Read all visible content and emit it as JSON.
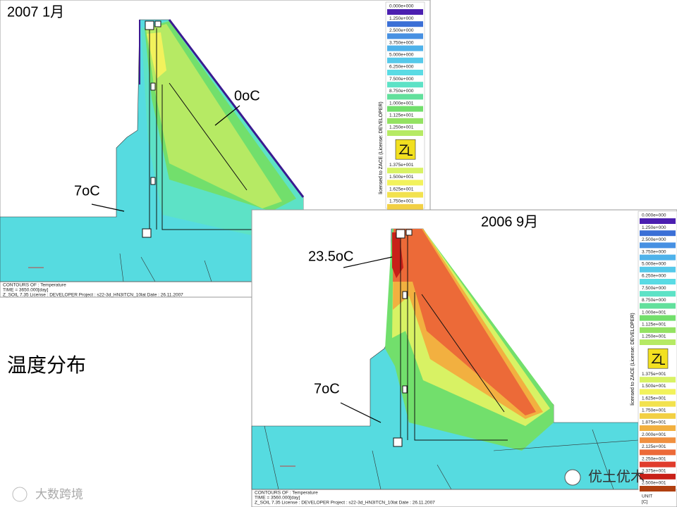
{
  "slide": {
    "label": "温度分布"
  },
  "panels": [
    {
      "title": "2007 1月",
      "annotations": [
        "0oC",
        "7oC"
      ],
      "legend": [
        {
          "label": "0.000e+000",
          "color": "#4b1fb0"
        },
        {
          "label": "1.250e+000",
          "color": "#3b6fd6"
        },
        {
          "label": "2.500e+000",
          "color": "#4790e2"
        },
        {
          "label": "3.750e+000",
          "color": "#4fb2ea"
        },
        {
          "label": "5.000e+000",
          "color": "#55c9ea"
        },
        {
          "label": "6.250e+000",
          "color": "#5adbe4"
        },
        {
          "label": "7.500e+000",
          "color": "#5de2c6"
        },
        {
          "label": "8.750e+000",
          "color": "#62e09c"
        },
        {
          "label": "1.000e+001",
          "color": "#72df6c"
        },
        {
          "label": "1.125e+001",
          "color": "#93e262"
        },
        {
          "label": "1.250e+001",
          "color": "#b6ea64"
        },
        {
          "label": "1.375e+001",
          "color": "#d8f264"
        },
        {
          "label": "1.500e+001",
          "color": "#f2f25c"
        },
        {
          "label": "1.625e+001",
          "color": "#f2e24e"
        },
        {
          "label": "1.750e+001",
          "color": "#f2d044"
        }
      ],
      "footer": [
        "CONTOURS OF : Temperature",
        "TIME = 3650.000[day]",
        "Z_SOIL 7.35   License : DEVELOPER   Project : s22-3d_HN3ITCN_10lat   Date : 26.11.2007"
      ],
      "license": "licensed to ZACE (License: DEVELOPER)"
    },
    {
      "title": "2006 9月",
      "annotations": [
        "23.5oC",
        "7oC"
      ],
      "legend": [
        {
          "label": "0.000e+000",
          "color": "#4b1fb0"
        },
        {
          "label": "1.250e+000",
          "color": "#3b6fd6"
        },
        {
          "label": "2.500e+000",
          "color": "#4790e2"
        },
        {
          "label": "3.750e+000",
          "color": "#4fb2ea"
        },
        {
          "label": "5.000e+000",
          "color": "#55c9ea"
        },
        {
          "label": "6.250e+000",
          "color": "#5adbe4"
        },
        {
          "label": "7.500e+000",
          "color": "#5de2c6"
        },
        {
          "label": "8.750e+000",
          "color": "#62e09c"
        },
        {
          "label": "1.000e+001",
          "color": "#72df6c"
        },
        {
          "label": "1.125e+001",
          "color": "#93e262"
        },
        {
          "label": "1.250e+001",
          "color": "#b6ea64"
        },
        {
          "label": "1.375e+001",
          "color": "#d8f264"
        },
        {
          "label": "1.500e+001",
          "color": "#f2f25c"
        },
        {
          "label": "1.625e+001",
          "color": "#f2e24e"
        },
        {
          "label": "1.750e+001",
          "color": "#f2d044"
        },
        {
          "label": "1.875e+001",
          "color": "#f2b040"
        },
        {
          "label": "2.000e+001",
          "color": "#f09040"
        },
        {
          "label": "2.125e+001",
          "color": "#ec6a38"
        },
        {
          "label": "2.250e+001",
          "color": "#e03c2c"
        },
        {
          "label": "2.375e+001",
          "color": "#c82018"
        },
        {
          "label": "2.500e+001",
          "color": "#b04010"
        }
      ],
      "footer": [
        "CONTOURS OF : Temperature",
        "TIME = 3560.000[day]",
        "Z_SOIL 7.35   License : DEVELOPER   Project : s22-3d_HN3ITCN_10lat   Date : 26.11.2007"
      ],
      "license": "licensed to ZACE (License: DEVELOPER)",
      "unit": [
        "UNIT",
        "[C]"
      ]
    }
  ],
  "watermarks": [
    "优土优木",
    "大数跨境"
  ]
}
